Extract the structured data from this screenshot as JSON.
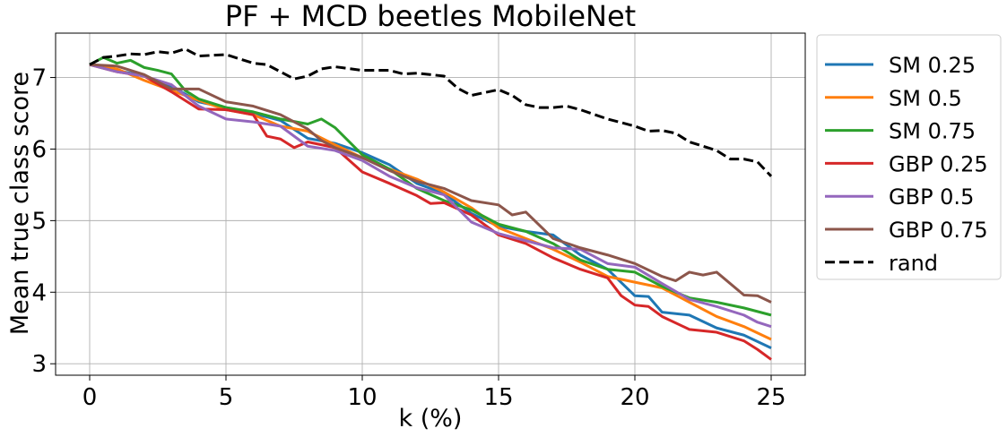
{
  "chart_data": {
    "type": "line",
    "title": "PF + MCD beetles MobileNet",
    "xlabel": "k (%)",
    "ylabel": "Mean true class score",
    "xlim": [
      -1.25,
      26.25
    ],
    "ylim": [
      2.84,
      7.62
    ],
    "xticks": [
      0,
      5,
      10,
      15,
      20,
      25
    ],
    "yticks": [
      3,
      4,
      5,
      6,
      7
    ],
    "grid": true,
    "legend_position": "outside-right",
    "series": [
      {
        "name": "SM 0.25",
        "color": "#1f77b4",
        "dashed": false,
        "points": [
          [
            0,
            7.18
          ],
          [
            1,
            7.1
          ],
          [
            2,
            7.02
          ],
          [
            3,
            6.88
          ],
          [
            4,
            6.66
          ],
          [
            5,
            6.58
          ],
          [
            6,
            6.5
          ],
          [
            7,
            6.4
          ],
          [
            8,
            6.15
          ],
          [
            9,
            6.08
          ],
          [
            10,
            5.95
          ],
          [
            11,
            5.78
          ],
          [
            12,
            5.52
          ],
          [
            13,
            5.38
          ],
          [
            14,
            5.1
          ],
          [
            15,
            4.92
          ],
          [
            16,
            4.85
          ],
          [
            17,
            4.8
          ],
          [
            18,
            4.52
          ],
          [
            19,
            4.32
          ],
          [
            20,
            3.95
          ],
          [
            20.5,
            3.94
          ],
          [
            21,
            3.72
          ],
          [
            22,
            3.68
          ],
          [
            23,
            3.5
          ],
          [
            24,
            3.4
          ],
          [
            25,
            3.22
          ]
        ]
      },
      {
        "name": "SM 0.5",
        "color": "#ff7f0e",
        "dashed": false,
        "points": [
          [
            0,
            7.18
          ],
          [
            1,
            7.12
          ],
          [
            2,
            6.96
          ],
          [
            3,
            6.82
          ],
          [
            4,
            6.68
          ],
          [
            5,
            6.55
          ],
          [
            6,
            6.48
          ],
          [
            7,
            6.32
          ],
          [
            8,
            6.25
          ],
          [
            9,
            6.06
          ],
          [
            10,
            5.88
          ],
          [
            11,
            5.72
          ],
          [
            12,
            5.58
          ],
          [
            13,
            5.4
          ],
          [
            14,
            5.18
          ],
          [
            15,
            4.9
          ],
          [
            16,
            4.75
          ],
          [
            17,
            4.6
          ],
          [
            18,
            4.42
          ],
          [
            19,
            4.22
          ],
          [
            20,
            4.14
          ],
          [
            21,
            4.06
          ],
          [
            22,
            3.86
          ],
          [
            23,
            3.66
          ],
          [
            24,
            3.52
          ],
          [
            25,
            3.34
          ]
        ]
      },
      {
        "name": "SM 0.75",
        "color": "#2ca02c",
        "dashed": false,
        "points": [
          [
            0,
            7.18
          ],
          [
            0.5,
            7.28
          ],
          [
            1,
            7.2
          ],
          [
            1.5,
            7.24
          ],
          [
            2,
            7.14
          ],
          [
            2.5,
            7.1
          ],
          [
            3,
            7.05
          ],
          [
            3.5,
            6.82
          ],
          [
            4,
            6.7
          ],
          [
            5,
            6.58
          ],
          [
            6,
            6.52
          ],
          [
            7,
            6.42
          ],
          [
            8,
            6.35
          ],
          [
            8.5,
            6.42
          ],
          [
            9,
            6.3
          ],
          [
            10,
            5.92
          ],
          [
            11,
            5.72
          ],
          [
            12,
            5.45
          ],
          [
            13,
            5.28
          ],
          [
            14,
            5.15
          ],
          [
            15,
            4.95
          ],
          [
            16,
            4.85
          ],
          [
            17,
            4.68
          ],
          [
            18,
            4.45
          ],
          [
            19,
            4.32
          ],
          [
            20,
            4.28
          ],
          [
            21,
            4.08
          ],
          [
            22,
            3.92
          ],
          [
            23,
            3.86
          ],
          [
            24,
            3.78
          ],
          [
            25,
            3.68
          ]
        ]
      },
      {
        "name": "GBP 0.25",
        "color": "#d62728",
        "dashed": false,
        "points": [
          [
            0,
            7.18
          ],
          [
            1,
            7.08
          ],
          [
            2,
            7.02
          ],
          [
            3,
            6.8
          ],
          [
            4,
            6.56
          ],
          [
            5,
            6.55
          ],
          [
            6,
            6.48
          ],
          [
            6.5,
            6.18
          ],
          [
            7,
            6.14
          ],
          [
            7.5,
            6.02
          ],
          [
            8,
            6.1
          ],
          [
            9,
            6.02
          ],
          [
            10,
            5.68
          ],
          [
            11,
            5.52
          ],
          [
            12,
            5.35
          ],
          [
            12.5,
            5.24
          ],
          [
            13,
            5.25
          ],
          [
            14,
            5.08
          ],
          [
            15,
            4.8
          ],
          [
            16,
            4.68
          ],
          [
            17,
            4.48
          ],
          [
            18,
            4.32
          ],
          [
            19,
            4.2
          ],
          [
            19.5,
            3.95
          ],
          [
            20,
            3.82
          ],
          [
            20.5,
            3.8
          ],
          [
            21,
            3.66
          ],
          [
            22,
            3.48
          ],
          [
            23,
            3.44
          ],
          [
            24,
            3.32
          ],
          [
            24.5,
            3.2
          ],
          [
            25,
            3.06
          ]
        ]
      },
      {
        "name": "GBP 0.5",
        "color": "#9467bd",
        "dashed": false,
        "points": [
          [
            0,
            7.18
          ],
          [
            1,
            7.08
          ],
          [
            2,
            7.02
          ],
          [
            3,
            6.9
          ],
          [
            4,
            6.6
          ],
          [
            5,
            6.42
          ],
          [
            6,
            6.38
          ],
          [
            7,
            6.32
          ],
          [
            8,
            6.04
          ],
          [
            9,
            5.98
          ],
          [
            10,
            5.84
          ],
          [
            11,
            5.62
          ],
          [
            12,
            5.46
          ],
          [
            13,
            5.36
          ],
          [
            14,
            4.98
          ],
          [
            15,
            4.82
          ],
          [
            16,
            4.72
          ],
          [
            17,
            4.62
          ],
          [
            18,
            4.6
          ],
          [
            19,
            4.4
          ],
          [
            20,
            4.35
          ],
          [
            21,
            4.12
          ],
          [
            22,
            3.9
          ],
          [
            23,
            3.8
          ],
          [
            24,
            3.68
          ],
          [
            24.5,
            3.58
          ],
          [
            25,
            3.52
          ]
        ]
      },
      {
        "name": "GBP 0.75",
        "color": "#8c564b",
        "dashed": false,
        "points": [
          [
            0,
            7.18
          ],
          [
            1,
            7.16
          ],
          [
            2,
            7.04
          ],
          [
            3,
            6.84
          ],
          [
            4,
            6.84
          ],
          [
            5,
            6.66
          ],
          [
            6,
            6.6
          ],
          [
            7,
            6.48
          ],
          [
            8,
            6.28
          ],
          [
            8.5,
            6.12
          ],
          [
            9,
            6.02
          ],
          [
            10,
            5.88
          ],
          [
            11,
            5.7
          ],
          [
            12,
            5.55
          ],
          [
            13,
            5.45
          ],
          [
            14,
            5.28
          ],
          [
            15,
            5.22
          ],
          [
            15.5,
            5.08
          ],
          [
            16,
            5.12
          ],
          [
            17,
            4.75
          ],
          [
            18,
            4.62
          ],
          [
            19,
            4.52
          ],
          [
            20,
            4.4
          ],
          [
            21,
            4.22
          ],
          [
            21.5,
            4.16
          ],
          [
            22,
            4.28
          ],
          [
            22.5,
            4.24
          ],
          [
            23,
            4.28
          ],
          [
            24,
            3.96
          ],
          [
            24.5,
            3.95
          ],
          [
            25,
            3.86
          ]
        ]
      },
      {
        "name": "rand",
        "color": "#000000",
        "dashed": true,
        "points": [
          [
            0,
            7.18
          ],
          [
            0.5,
            7.28
          ],
          [
            1,
            7.3
          ],
          [
            1.5,
            7.33
          ],
          [
            2,
            7.32
          ],
          [
            2.5,
            7.36
          ],
          [
            3,
            7.34
          ],
          [
            3.5,
            7.4
          ],
          [
            4,
            7.3
          ],
          [
            5,
            7.32
          ],
          [
            6,
            7.2
          ],
          [
            6.5,
            7.18
          ],
          [
            7,
            7.08
          ],
          [
            7.5,
            6.98
          ],
          [
            8,
            7.02
          ],
          [
            8.5,
            7.12
          ],
          [
            9,
            7.15
          ],
          [
            10,
            7.1
          ],
          [
            11,
            7.1
          ],
          [
            11.5,
            7.05
          ],
          [
            12,
            7.06
          ],
          [
            13,
            7.02
          ],
          [
            13.5,
            6.85
          ],
          [
            14,
            6.75
          ],
          [
            15,
            6.83
          ],
          [
            15.5,
            6.75
          ],
          [
            16,
            6.62
          ],
          [
            16.5,
            6.58
          ],
          [
            17,
            6.58
          ],
          [
            17.5,
            6.6
          ],
          [
            18,
            6.55
          ],
          [
            19,
            6.42
          ],
          [
            20,
            6.32
          ],
          [
            20.5,
            6.25
          ],
          [
            21,
            6.26
          ],
          [
            21.5,
            6.22
          ],
          [
            22,
            6.1
          ],
          [
            23,
            5.98
          ],
          [
            23.5,
            5.86
          ],
          [
            24,
            5.86
          ],
          [
            24.5,
            5.82
          ],
          [
            25,
            5.62
          ]
        ]
      }
    ]
  }
}
